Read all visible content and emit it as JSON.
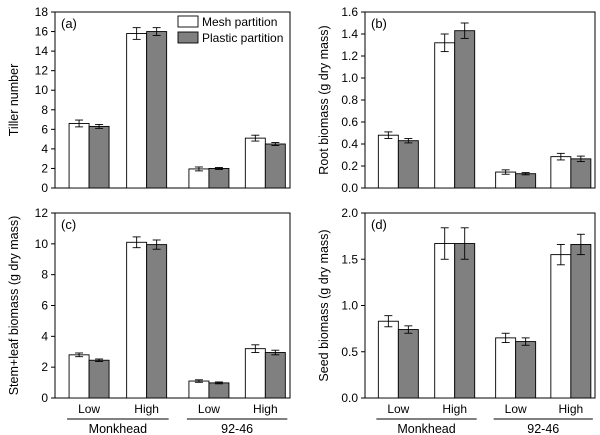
{
  "figure": {
    "legend": [
      {
        "label": "Mesh partition",
        "color": "#ffffff"
      },
      {
        "label": "Plastic partition",
        "color": "#808080"
      }
    ]
  },
  "chart_data": [
    {
      "type": "bar",
      "panel": "(a)",
      "title": "",
      "xlabel": "",
      "ylabel": "Tiller number",
      "ylim": [
        0,
        18
      ],
      "yticks": [
        0,
        2,
        4,
        6,
        8,
        10,
        12,
        14,
        16,
        18
      ],
      "ytick_labels": [
        "0",
        "2",
        "4",
        "6",
        "8",
        "10",
        "12",
        "14",
        "16",
        "18"
      ],
      "categories": [
        "Low",
        "High",
        "Low",
        "High"
      ],
      "groups": [
        "Monkhead",
        "92-46"
      ],
      "series": [
        {
          "name": "Mesh partition",
          "values": [
            6.6,
            15.8,
            1.95,
            5.1
          ],
          "errors": [
            0.35,
            0.6,
            0.2,
            0.3
          ]
        },
        {
          "name": "Plastic partition",
          "values": [
            6.3,
            16.0,
            2.0,
            4.5
          ],
          "errors": [
            0.2,
            0.4,
            0.1,
            0.15
          ]
        }
      ]
    },
    {
      "type": "bar",
      "panel": "(b)",
      "title": "",
      "xlabel": "",
      "ylabel": "Root biomass (g dry mass)",
      "ylim": [
        0,
        1.6
      ],
      "yticks": [
        0,
        0.2,
        0.4,
        0.6,
        0.8,
        1.0,
        1.2,
        1.4,
        1.6
      ],
      "ytick_labels": [
        "0.0",
        "0.2",
        "0.4",
        "0.6",
        "0.8",
        "1.0",
        "1.2",
        "1.4",
        "1.6"
      ],
      "categories": [
        "Low",
        "High",
        "Low",
        "High"
      ],
      "groups": [
        "Monkhead",
        "92-46"
      ],
      "series": [
        {
          "name": "Mesh partition",
          "values": [
            0.48,
            1.32,
            0.145,
            0.285
          ],
          "errors": [
            0.03,
            0.08,
            0.02,
            0.03
          ]
        },
        {
          "name": "Plastic partition",
          "values": [
            0.43,
            1.43,
            0.13,
            0.265
          ],
          "errors": [
            0.02,
            0.07,
            0.01,
            0.025
          ]
        }
      ]
    },
    {
      "type": "bar",
      "panel": "(c)",
      "title": "",
      "xlabel": "",
      "ylabel": "Stem+leaf biomass (g dry mass)",
      "ylim": [
        0,
        12
      ],
      "yticks": [
        0,
        2,
        4,
        6,
        8,
        10,
        12
      ],
      "ytick_labels": [
        "0",
        "2",
        "4",
        "6",
        "8",
        "10",
        "12"
      ],
      "categories": [
        "Low",
        "High",
        "Low",
        "High"
      ],
      "groups": [
        "Monkhead",
        "92-46"
      ],
      "series": [
        {
          "name": "Mesh partition",
          "values": [
            2.8,
            10.1,
            1.1,
            3.2
          ],
          "errors": [
            0.12,
            0.35,
            0.08,
            0.25
          ]
        },
        {
          "name": "Plastic partition",
          "values": [
            2.45,
            9.95,
            0.98,
            2.95
          ],
          "errors": [
            0.08,
            0.3,
            0.06,
            0.15
          ]
        }
      ]
    },
    {
      "type": "bar",
      "panel": "(d)",
      "title": "",
      "xlabel": "",
      "ylabel": "Seed biomass (g dry mass)",
      "ylim": [
        0,
        2.0
      ],
      "yticks": [
        0,
        0.5,
        1.0,
        1.5,
        2.0
      ],
      "ytick_labels": [
        "0.0",
        "0.5",
        "1.0",
        "1.5",
        "2.0"
      ],
      "categories": [
        "Low",
        "High",
        "Low",
        "High"
      ],
      "groups": [
        "Monkhead",
        "92-46"
      ],
      "series": [
        {
          "name": "Mesh partition",
          "values": [
            0.83,
            1.67,
            0.65,
            1.55
          ],
          "errors": [
            0.06,
            0.17,
            0.05,
            0.11
          ]
        },
        {
          "name": "Plastic partition",
          "values": [
            0.74,
            1.67,
            0.61,
            1.66
          ],
          "errors": [
            0.04,
            0.17,
            0.04,
            0.11
          ]
        }
      ]
    }
  ]
}
